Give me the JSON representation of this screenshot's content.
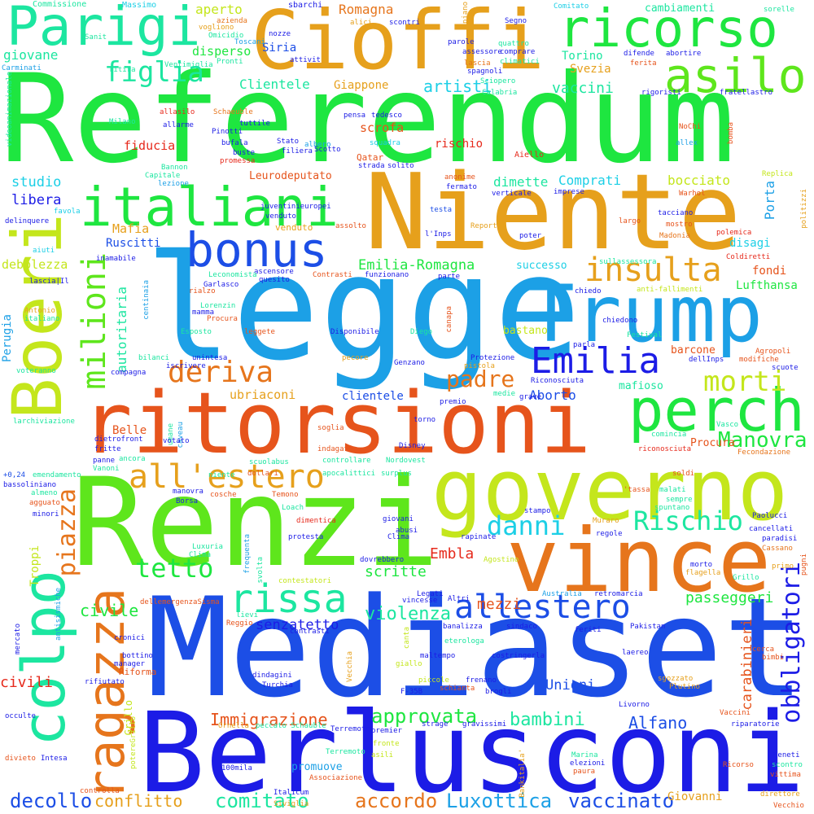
{
  "colors": {
    "green": "#1ee640",
    "lime": "#5ee61c",
    "yellowgreen": "#c4e61c",
    "orange": "#e6a01c",
    "darkorange": "#e6751c",
    "redorange": "#e6541c",
    "red": "#e62a1c",
    "blue": "#1c4ee6",
    "navy": "#1c1ce6",
    "azure": "#1ca0e6",
    "cyan": "#1ccfe6",
    "teal": "#1ce6a0"
  },
  "words": {
    "referendum": "Referendum",
    "mediaset": "Mediaset",
    "berlusconi": "Berlusconi",
    "renzi": "Renzi",
    "legge": "legge",
    "niente": "Niente",
    "cioffi": "Cioffi",
    "ritorsioni": "ritorsioni",
    "governo": "governo",
    "vince": "vince",
    "trump": "Trump",
    "boeri": "Boeri",
    "colpo": "colpo",
    "ragazza": "ragazza",
    "italiani": "italiani",
    "bonus": "bonus",
    "parigi": "Parigi",
    "ricorso": "ricorso",
    "asilo": "asilo",
    "perch": "perch",
    "insulta": "insulta",
    "milioni": "milioni",
    "emilia": "Emilia",
    "allestero": "allestero",
    "all_estero": "all'estero",
    "rissa": "rissa",
    "deriva": "deriva",
    "morti": "morti",
    "padre": "padre",
    "danni": "danni",
    "rischio_cap": "Rischio",
    "tetto": "tetto",
    "obbligatori": "obbligatori",
    "piazza": "piazza",
    "figlia": "figlia",
    "manovra": "Manovra",
    "luxottica": "Luxottica",
    "vaccinato": "vaccinato",
    "berlusconi_small": "accordo",
    "decollo": "decollo",
    "conflitto": "conflitto",
    "comitato": "comitato",
    "approvata": "approvata",
    "bambini": "bambini",
    "alfano": "Alfano",
    "immigrazione": "Immigrazione",
    "violenza": "violenza",
    "mezzi": "mezzi",
    "scritte": "scritte",
    "embla": "Embla",
    "passeggeri": "passeggeri",
    "carabinieri": "carabinieri",
    "unioni": "Unioni",
    "civile": "civile",
    "civili": "civili",
    "senzatetto": "senzatetto",
    "autoritaria": "autoritaria",
    "emilia_romagna": "Emilia-Romagna",
    "successo": "successo",
    "fondi": "fondi",
    "lufthansa": "Lufthansa",
    "mafia": "Mafia",
    "debolezza": "debolezza",
    "ruscitti": "Ruscitti",
    "studio": "studio",
    "libera": "libera",
    "dimette": "dimette",
    "comprati": "Comprati",
    "bocciato": "bocciato",
    "porta": "Porta",
    "disagi": "disagi",
    "artisti": "artisti",
    "vaccini": "vaccini",
    "clientele_cap": "Clientele",
    "giappone": "Giappone",
    "scrofa": "scrofa",
    "rischio": "rischio",
    "fiducia": "fiducia",
    "siria": "Siria",
    "torino": "Torino",
    "svezia": "Svezia",
    "romagna": "Romagna",
    "aperto": "aperto",
    "disperso": "disperso",
    "giovane": "giovane",
    "cambiamenti": "cambiamenti",
    "ubriaconi": "ubriaconi",
    "clientele": "clientele",
    "aborto": "Aborto",
    "mafioso": "mafioso",
    "barcone": "barcone",
    "bastano": "bastano",
    "perugia": "Perugia",
    "belle": "Belle",
    "troppi": "Troppi",
    "giovanni": "Giovanni",
    "procura": "Procura",
    "promuove": "promuove",
    "grillo": "Grillo",
    "euro": "Leurodeputato",
    "venduto": "venduto",
    "riforma": "Riforma",
    "commissione": "Commissione",
    "massimo": "Massimo",
    "sbarchi": "sbarchi",
    "comitato_small": "Comitato",
    "sorelle": "sorelle",
    "milano": "Milano",
    "schaeuble": "Schaeuble",
    "pinotti": "Pinotti",
    "tedesco": "tedesco",
    "aiello": "Aiello",
    "qatar": "Qatar",
    "bannon": "Bannon",
    "capitale": "Capitale",
    "coldiretti": "Coldiretti",
    "madonia": "Madonia",
    "polemica": "polemica",
    "warhol": "Warhol",
    "genzano": "Genzano",
    "diego": "Diego",
    "disponibile": "Disponibile",
    "festival": "Festival",
    "agropoli": "Agropoli",
    "vasco": "Vasco",
    "ventimiglia": "Ventimiglia",
    "calabria": "Calabria",
    "spagnoli": "spagnoli",
    "sciopero": "Sciopero",
    "carminati": "Carminati",
    "rigoristi": "rigoristi",
    "fratellastro": "fratellastro",
    "nochi": "NoChi",
    "allarme": "allarme",
    "bufala": "bufala",
    "scotto": "Scotto",
    "squadra": "squadra",
    "allex": "allex",
    "bomba": "bomba",
    "replica": "Replica",
    "politizzi": "politizzi",
    "aiuti": "aiuti",
    "delinquere": "delinquere",
    "inamabile": "inamabile",
    "lascia_il": "lascia|Il",
    "garlasco": "Garlasco",
    "rialzo": "rialzo",
    "lorenzin": "Lorenzin",
    "mamma": "mamma",
    "esposto": "Esposto",
    "leggete": "leggete",
    "antonio": "Antonio",
    "italiano": "italiano",
    "bilanci": "bilanci",
    "unintesa": "unintesa",
    "voteranno": "voteranno",
    "compagna": "compagna",
    "iscrivere": "iscrivere",
    "pecore": "pecore",
    "protezione": "Protezione",
    "riconosciuta": "Riconosciuta",
    "dellinps": "dellInps",
    "modifiche": "modifiche",
    "scuote": "scuote",
    "premio": "premio",
    "medie": "medie",
    "grave": "grave",
    "torno": "torno",
    "soglia": "soglia",
    "indagato": "indagato",
    "disney": "Disney",
    "scuolabus": "scuolabus",
    "controllare": "controllare",
    "nordovest": "Nordovest",
    "dollari": "dollari",
    "niente_small": "niente",
    "apocalittici": "apocalittici",
    "surplus": "surplus",
    "soldi": "soldi",
    "tassa": "'tassa",
    "malati": "malati",
    "sempre": "sempre",
    "spuntano": "spuntano",
    "paolucci": "Paolucci",
    "cancellati": "cancellati",
    "paradisi": "paradisi",
    "cassano": "Cassano",
    "fecondazione": "Fecondazione",
    "riconosciuta_small": "riconosciuta",
    "comincia": "comincia",
    "bassoliniano": "bassoliniano",
    "emendamento": "emendamento",
    "agguato": "agguato",
    "minori": "minori",
    "vanoni": "Vanoni",
    "fritte": "fritte",
    "panne": "panne",
    "dietrofront": "dietrofront",
    "votato": "votato",
    "borsa": "Borsa",
    "cosche": "cosche",
    "loach": "Loach",
    "temono": "Temono",
    "dimentica": "dimentica",
    "protesta": "protesta",
    "luxuria": "Luxuria",
    "clima": "Clima",
    "frequenta": "frequenta",
    "svolta": "svolta",
    "dovrebbero": "dovrebbero",
    "stampo": "stampo",
    "rapinate": "rapinate",
    "muraro": "Muraro",
    "regole": "regole",
    "agostino": "Agostino",
    "morto": "morto",
    "flagella": "flagella",
    "primo": "primo",
    "pugni": "pugni",
    "australia": "Australia",
    "retromarcia": "retromarcia",
    "legati": "Legati",
    "vincesse": "vincesse",
    "altri": "Altri",
    "contestatori": "contestatori",
    "sisma": "dellemergenzaSisma",
    "lievi": "lievi",
    "reggio": "Reggio",
    "contrasti": "contrasti",
    "banalizza": "banalizza",
    "sindaco": "sindaco",
    "feriti": "feriti",
    "pakistan": "Pakistan",
    "cronici": "cronici",
    "bottino": "bottino",
    "manager": "manager",
    "rifiutato": "rifiutato",
    "maltempo": "maltempo",
    "costringerla": "costringerla",
    "laereo": "laereo",
    "cerca": "cerca",
    "bimbi": "bimbi",
    "sgozzato": "sgozzato",
    "plutino": "Plutino",
    "occulte": "occulte",
    "dindagini": "dindagini",
    "turchia": "Turchia",
    "schianta": "schianta",
    "piccole": "piccole",
    "frenano": "frenano",
    "brogli": "brogli",
    "f35b": "F-35B",
    "terremoto": "Terremoto",
    "livorno": "Livorno",
    "vaccini_small": "Vaccini",
    "riparatorie": "riparatorie",
    "divieto": "divieto",
    "intesa": "Intesa",
    "ornella": "Ornella",
    "peccato": "peccato Schauble",
    "potere": "potereGrillo",
    "strage": "strage",
    "gravissimi": "gravissimi",
    "premier": "premier",
    "fronte": "fronte",
    "asili": "asili",
    "marina": "Marina",
    "elezioni": "elezioni",
    "paura": "paura",
    "veneti": "Veneti",
    "scontro": "scontro",
    "vittima": "vittima",
    "ricorso_small": "Ricorso",
    "associazione": "Associazione",
    "italicum": "Italicum",
    "siviglia": "Siviglia",
    "controlla": "controlla",
    "mila": "100mila",
    "direttore": "direttore",
    "vecchio": "Vecchio",
    "nozze": "nozze",
    "alici": "alici",
    "scontri": "scontri",
    "parole": "parole",
    "quattro": "quattro",
    "comprare": "comprare",
    "climatici": "climatici",
    "difende": "difende",
    "abortire": "abortire",
    "ferita": "ferita",
    "assessore": "assessore",
    "segno": "Segno",
    "piano": "piano",
    "pronti": "Pronti",
    "attivit": "attivit",
    "omicidio": "Omicidio",
    "toscani": "Toscani",
    "vogliono": "vogliono",
    "azienda": "azienda",
    "sanit": "Sanit",
    "ritira": "ritira",
    "lascia_small": "lascia",
    "allasilo": "allasilo",
    "tuttile": "tuttile",
    "stato": "Stato",
    "albero": "albero",
    "buste": "buste",
    "filiera": "filiera",
    "promessa": "promessa",
    "solito": "solito",
    "strada": "strada",
    "pensa": "pensa",
    "lezione": "lezione",
    "juventini": "juventinieuropei",
    "venduto2": "venduto",
    "assolto": "assolto",
    "anonime": "anonime",
    "fermato": "fermato",
    "verticale": "verticale",
    "imprese": "imprese",
    "testa": "testa",
    "linps": "l'Inps",
    "report": "Report",
    "poter": "poter",
    "largo": "largo",
    "mostro": "mostro",
    "tacciano": "tacciano",
    "sullassessora": "sullassessora",
    "anti": "anti-fallimenti",
    "chiedo": "chiedo",
    "chiedono": "chiedono",
    "parla": "parla",
    "ascensore": "ascensore",
    "quesito": "quesito",
    "leconomista": "Leconomista",
    "contrasti2": "Contrasti",
    "funzionano": "funzionano",
    "parte": "parte",
    "canapa": "canapa",
    "centinaia": "centinaia",
    "pistola": "pistola",
    "abusi": "abusi",
    "giovani": "giovani",
    "ancora": "ancora",
    "umane": "umane",
    "caveau": "caveau",
    "plus": "+0,24",
    "larchiviazione": "larchiviazione",
    "almeno": "almeno",
    "manovra_small": "manovra",
    "favola": "favola",
    "mercato": "mercato",
    "antisismiche": "antisismiche",
    "veleni": "Vecchia",
    "canta": "canta",
    "bankitalia": "Bankitalia'",
    "video": "videoanimazionale",
    "giallo": "giallo",
    "eteriologa": "eterologa"
  }
}
